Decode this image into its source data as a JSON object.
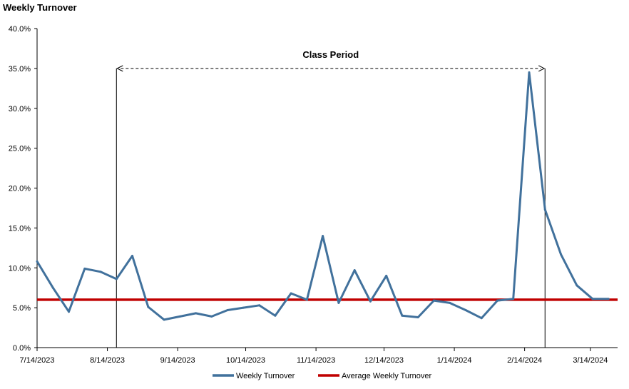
{
  "chart_data": {
    "type": "line",
    "title": "Weekly Turnover",
    "xlabel": "",
    "ylabel": "",
    "ylim": [
      0,
      40
    ],
    "y_ticks": [
      "0.0%",
      "5.0%",
      "10.0%",
      "15.0%",
      "20.0%",
      "25.0%",
      "30.0%",
      "35.0%",
      "40.0%"
    ],
    "x_ticks": [
      "7/14/2023",
      "8/14/2023",
      "9/14/2023",
      "10/14/2023",
      "11/14/2023",
      "12/14/2023",
      "1/14/2024",
      "2/14/2024",
      "3/14/2024"
    ],
    "x_tick_dates": [
      "2023-07-14",
      "2023-08-14",
      "2023-09-14",
      "2023-10-14",
      "2023-11-14",
      "2023-12-14",
      "2024-01-14",
      "2024-02-14",
      "2024-03-14"
    ],
    "x_range": [
      "2023-07-14",
      "2024-03-26"
    ],
    "series": [
      {
        "name": "Weekly Turnover",
        "color": "#41719c",
        "x": [
          "2023-07-14",
          "2023-07-21",
          "2023-07-28",
          "2023-08-04",
          "2023-08-11",
          "2023-08-18",
          "2023-08-25",
          "2023-09-01",
          "2023-09-08",
          "2023-09-15",
          "2023-09-22",
          "2023-09-29",
          "2023-10-06",
          "2023-10-13",
          "2023-10-20",
          "2023-10-27",
          "2023-11-03",
          "2023-11-10",
          "2023-11-17",
          "2023-11-24",
          "2023-12-01",
          "2023-12-08",
          "2023-12-15",
          "2023-12-22",
          "2023-12-29",
          "2024-01-05",
          "2024-01-12",
          "2024-01-19",
          "2024-01-26",
          "2024-02-02",
          "2024-02-09",
          "2024-02-16",
          "2024-02-23",
          "2024-03-01",
          "2024-03-08",
          "2024-03-15",
          "2024-03-22"
        ],
        "values": [
          10.8,
          7.5,
          4.5,
          9.9,
          9.5,
          8.6,
          11.5,
          5.1,
          3.5,
          3.9,
          4.3,
          3.9,
          4.7,
          5.0,
          5.3,
          4.0,
          6.8,
          6.0,
          14.0,
          5.6,
          9.7,
          5.8,
          9.0,
          4.0,
          3.8,
          5.9,
          5.6,
          4.7,
          3.7,
          5.9,
          6.1,
          34.5,
          17.3,
          11.7,
          7.8,
          6.1,
          6.1
        ]
      },
      {
        "name": "Average Weekly Turnover",
        "color": "#c00000",
        "x": [
          "2023-07-14",
          "2024-03-26"
        ],
        "values": [
          6.0,
          6.0
        ]
      }
    ],
    "annotations": {
      "period_label": "Class Period",
      "period_start": "2023-08-18",
      "period_end": "2024-02-23",
      "arrow_level": 35
    },
    "legend_placement": "bottom-center",
    "grid": false
  }
}
